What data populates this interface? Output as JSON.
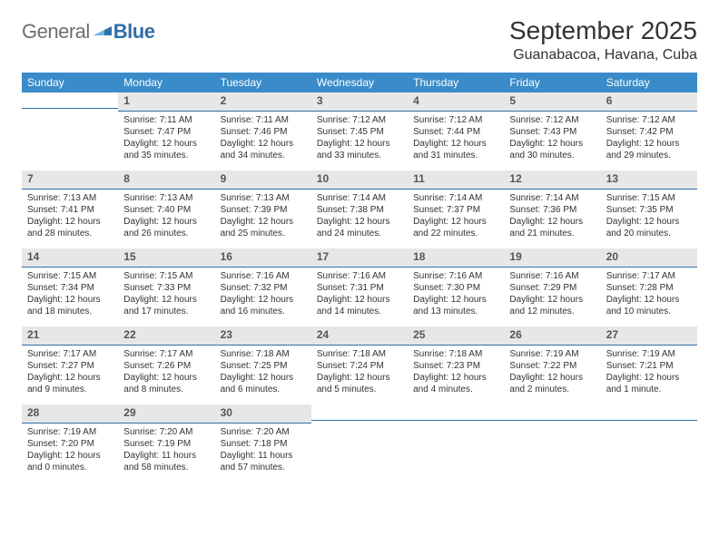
{
  "logo": {
    "general": "General",
    "blue": "Blue"
  },
  "title": "September 2025",
  "location": "Guanabacoa, Havana, Cuba",
  "colors": {
    "header_bg": "#3a8bc9",
    "header_text": "#ffffff",
    "daynum_bg": "#e7e7e7",
    "rule": "#2f6fa8",
    "logo_gray": "#6e6e6e",
    "logo_blue": "#2f6fa8"
  },
  "weekdays": [
    "Sunday",
    "Monday",
    "Tuesday",
    "Wednesday",
    "Thursday",
    "Friday",
    "Saturday"
  ],
  "startOffset": 1,
  "days": [
    {
      "n": 1,
      "sunrise": "7:11 AM",
      "sunset": "7:47 PM",
      "dl": "12 hours and 35 minutes."
    },
    {
      "n": 2,
      "sunrise": "7:11 AM",
      "sunset": "7:46 PM",
      "dl": "12 hours and 34 minutes."
    },
    {
      "n": 3,
      "sunrise": "7:12 AM",
      "sunset": "7:45 PM",
      "dl": "12 hours and 33 minutes."
    },
    {
      "n": 4,
      "sunrise": "7:12 AM",
      "sunset": "7:44 PM",
      "dl": "12 hours and 31 minutes."
    },
    {
      "n": 5,
      "sunrise": "7:12 AM",
      "sunset": "7:43 PM",
      "dl": "12 hours and 30 minutes."
    },
    {
      "n": 6,
      "sunrise": "7:12 AM",
      "sunset": "7:42 PM",
      "dl": "12 hours and 29 minutes."
    },
    {
      "n": 7,
      "sunrise": "7:13 AM",
      "sunset": "7:41 PM",
      "dl": "12 hours and 28 minutes."
    },
    {
      "n": 8,
      "sunrise": "7:13 AM",
      "sunset": "7:40 PM",
      "dl": "12 hours and 26 minutes."
    },
    {
      "n": 9,
      "sunrise": "7:13 AM",
      "sunset": "7:39 PM",
      "dl": "12 hours and 25 minutes."
    },
    {
      "n": 10,
      "sunrise": "7:14 AM",
      "sunset": "7:38 PM",
      "dl": "12 hours and 24 minutes."
    },
    {
      "n": 11,
      "sunrise": "7:14 AM",
      "sunset": "7:37 PM",
      "dl": "12 hours and 22 minutes."
    },
    {
      "n": 12,
      "sunrise": "7:14 AM",
      "sunset": "7:36 PM",
      "dl": "12 hours and 21 minutes."
    },
    {
      "n": 13,
      "sunrise": "7:15 AM",
      "sunset": "7:35 PM",
      "dl": "12 hours and 20 minutes."
    },
    {
      "n": 14,
      "sunrise": "7:15 AM",
      "sunset": "7:34 PM",
      "dl": "12 hours and 18 minutes."
    },
    {
      "n": 15,
      "sunrise": "7:15 AM",
      "sunset": "7:33 PM",
      "dl": "12 hours and 17 minutes."
    },
    {
      "n": 16,
      "sunrise": "7:16 AM",
      "sunset": "7:32 PM",
      "dl": "12 hours and 16 minutes."
    },
    {
      "n": 17,
      "sunrise": "7:16 AM",
      "sunset": "7:31 PM",
      "dl": "12 hours and 14 minutes."
    },
    {
      "n": 18,
      "sunrise": "7:16 AM",
      "sunset": "7:30 PM",
      "dl": "12 hours and 13 minutes."
    },
    {
      "n": 19,
      "sunrise": "7:16 AM",
      "sunset": "7:29 PM",
      "dl": "12 hours and 12 minutes."
    },
    {
      "n": 20,
      "sunrise": "7:17 AM",
      "sunset": "7:28 PM",
      "dl": "12 hours and 10 minutes."
    },
    {
      "n": 21,
      "sunrise": "7:17 AM",
      "sunset": "7:27 PM",
      "dl": "12 hours and 9 minutes."
    },
    {
      "n": 22,
      "sunrise": "7:17 AM",
      "sunset": "7:26 PM",
      "dl": "12 hours and 8 minutes."
    },
    {
      "n": 23,
      "sunrise": "7:18 AM",
      "sunset": "7:25 PM",
      "dl": "12 hours and 6 minutes."
    },
    {
      "n": 24,
      "sunrise": "7:18 AM",
      "sunset": "7:24 PM",
      "dl": "12 hours and 5 minutes."
    },
    {
      "n": 25,
      "sunrise": "7:18 AM",
      "sunset": "7:23 PM",
      "dl": "12 hours and 4 minutes."
    },
    {
      "n": 26,
      "sunrise": "7:19 AM",
      "sunset": "7:22 PM",
      "dl": "12 hours and 2 minutes."
    },
    {
      "n": 27,
      "sunrise": "7:19 AM",
      "sunset": "7:21 PM",
      "dl": "12 hours and 1 minute."
    },
    {
      "n": 28,
      "sunrise": "7:19 AM",
      "sunset": "7:20 PM",
      "dl": "12 hours and 0 minutes."
    },
    {
      "n": 29,
      "sunrise": "7:20 AM",
      "sunset": "7:19 PM",
      "dl": "11 hours and 58 minutes."
    },
    {
      "n": 30,
      "sunrise": "7:20 AM",
      "sunset": "7:18 PM",
      "dl": "11 hours and 57 minutes."
    }
  ],
  "labels": {
    "sunrise": "Sunrise:",
    "sunset": "Sunset:",
    "daylight": "Daylight:"
  }
}
